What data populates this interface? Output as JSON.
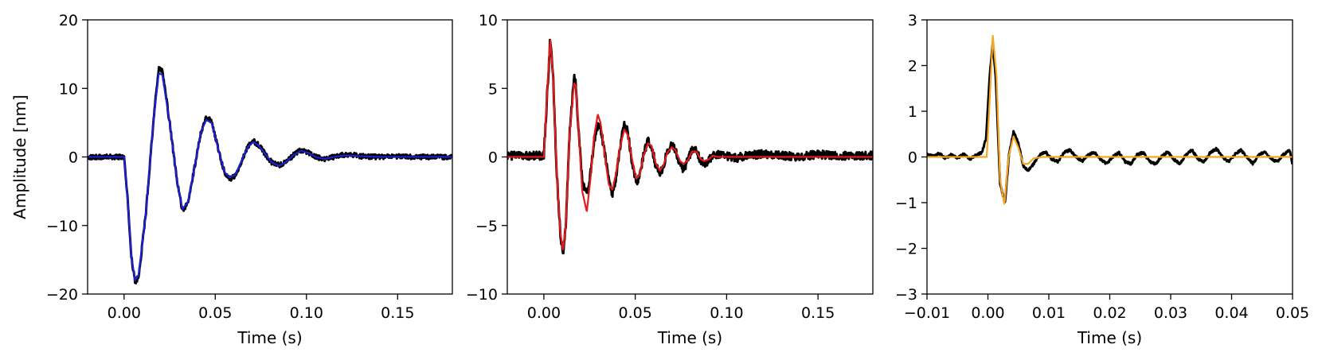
{
  "chart_data": [
    {
      "type": "line",
      "xlabel": "Time (s)",
      "ylabel": "Amplitude [nm]",
      "xlim": [
        -0.02,
        0.18
      ],
      "ylim": [
        -20,
        20
      ],
      "xticks": [
        0.0,
        0.05,
        0.1,
        0.15
      ],
      "xtick_labels": [
        "0.00",
        "0.05",
        "0.10",
        "0.15"
      ],
      "yticks": [
        -20,
        -10,
        0,
        10,
        20
      ],
      "ytick_labels": [
        "−20",
        "−10",
        "0",
        "10",
        "20"
      ],
      "grid": false,
      "series": [
        {
          "color": "#000000",
          "noise": 0.35,
          "x": [
            -0.02,
            0.0,
            0.002,
            0.004,
            0.006,
            0.008,
            0.012,
            0.016,
            0.019,
            0.021,
            0.025,
            0.029,
            0.032,
            0.035,
            0.039,
            0.042,
            0.045,
            0.048,
            0.052,
            0.055,
            0.058,
            0.061,
            0.065,
            0.068,
            0.071,
            0.074,
            0.078,
            0.081,
            0.085,
            0.089,
            0.093,
            0.097,
            0.101,
            0.105,
            0.11,
            0.115,
            0.12,
            0.125,
            0.13,
            0.14,
            0.15,
            0.16,
            0.17,
            0.18
          ],
          "y": [
            0,
            0,
            -6.5,
            -14.5,
            -18.3,
            -17.5,
            -8.0,
            5.0,
            13.0,
            12.6,
            5.0,
            -3.5,
            -7.8,
            -6.8,
            -1.0,
            3.5,
            5.8,
            5.2,
            0.8,
            -2.2,
            -3.2,
            -2.8,
            -0.2,
            1.6,
            2.3,
            1.7,
            0.2,
            -0.8,
            -1.2,
            -0.7,
            0.3,
            1.0,
            0.7,
            0.0,
            -0.3,
            0.0,
            0.3,
            0.3,
            0.1,
            0.0,
            0.1,
            0.0,
            0.0,
            0.0
          ]
        },
        {
          "color": "#1f1fd6",
          "noise": 0,
          "x": [
            -0.02,
            0.0,
            0.002,
            0.004,
            0.006,
            0.008,
            0.012,
            0.016,
            0.019,
            0.021,
            0.025,
            0.029,
            0.032,
            0.035,
            0.039,
            0.042,
            0.045,
            0.048,
            0.052,
            0.055,
            0.058,
            0.061,
            0.065,
            0.068,
            0.071,
            0.074,
            0.078,
            0.081,
            0.085,
            0.089,
            0.093,
            0.097,
            0.101,
            0.105,
            0.11,
            0.115,
            0.12,
            0.125,
            0.13,
            0.14,
            0.15,
            0.16,
            0.17,
            0.18
          ],
          "y": [
            0,
            0,
            -6.5,
            -14.5,
            -18.0,
            -17.2,
            -8.0,
            5.0,
            12.2,
            12.0,
            5.0,
            -3.5,
            -7.6,
            -6.6,
            -1.0,
            3.5,
            5.4,
            5.0,
            0.8,
            -2.2,
            -3.0,
            -2.6,
            -0.2,
            1.5,
            2.2,
            1.6,
            0.2,
            -0.8,
            -1.3,
            -0.7,
            0.3,
            0.9,
            0.6,
            0.0,
            -0.3,
            0.0,
            0.2,
            0.2,
            0.1,
            0.0,
            0.0,
            0.0,
            0.0,
            0.0
          ]
        }
      ]
    },
    {
      "type": "line",
      "xlabel": "Time (s)",
      "ylabel": "",
      "xlim": [
        -0.02,
        0.18
      ],
      "ylim": [
        -10,
        10
      ],
      "xticks": [
        0.0,
        0.05,
        0.1,
        0.15
      ],
      "xtick_labels": [
        "0.00",
        "0.05",
        "0.10",
        "0.15"
      ],
      "yticks": [
        -10,
        -5,
        0,
        5,
        10
      ],
      "ytick_labels": [
        "−10",
        "−5",
        "0",
        "5",
        "10"
      ],
      "grid": false,
      "series": [
        {
          "color": "#000000",
          "noise": 0.3,
          "x": [
            -0.02,
            0.0,
            0.002,
            0.0035,
            0.005,
            0.007,
            0.009,
            0.0105,
            0.012,
            0.014,
            0.0165,
            0.0175,
            0.019,
            0.021,
            0.0235,
            0.0255,
            0.0275,
            0.0295,
            0.031,
            0.033,
            0.0355,
            0.0375,
            0.0395,
            0.0415,
            0.044,
            0.046,
            0.048,
            0.0505,
            0.0525,
            0.0545,
            0.057,
            0.059,
            0.061,
            0.0635,
            0.0655,
            0.0675,
            0.07,
            0.072,
            0.0745,
            0.0765,
            0.079,
            0.081,
            0.0835,
            0.0855,
            0.0875,
            0.09,
            0.0925,
            0.095,
            0.1,
            0.105,
            0.11,
            0.12,
            0.13,
            0.14,
            0.15,
            0.16,
            0.17,
            0.18
          ],
          "y": [
            0.1,
            0.1,
            5.0,
            8.7,
            6.0,
            -1.0,
            -5.5,
            -7.1,
            -5.0,
            1.5,
            5.8,
            5.3,
            2.0,
            -1.8,
            -2.8,
            -1.2,
            1.2,
            2.3,
            2.1,
            0.6,
            -1.5,
            -2.7,
            -1.5,
            0.6,
            2.5,
            1.8,
            -0.2,
            -1.8,
            -1.5,
            0.2,
            1.2,
            0.8,
            -0.5,
            -1.2,
            -0.7,
            0.4,
            0.9,
            0.6,
            -0.6,
            -0.9,
            -0.2,
            0.6,
            0.5,
            -0.2,
            -0.5,
            -0.3,
            0.1,
            0.2,
            0.1,
            -0.1,
            0.1,
            0.2,
            0.1,
            0.0,
            0.2,
            0.1,
            0.1,
            0.1
          ]
        },
        {
          "color": "#e41a1c",
          "noise": 0,
          "x": [
            -0.02,
            0.0,
            0.002,
            0.0035,
            0.005,
            0.007,
            0.009,
            0.0105,
            0.012,
            0.014,
            0.0165,
            0.0175,
            0.019,
            0.021,
            0.0235,
            0.0255,
            0.0275,
            0.0295,
            0.031,
            0.033,
            0.0355,
            0.0375,
            0.0395,
            0.0415,
            0.044,
            0.046,
            0.048,
            0.0505,
            0.0525,
            0.0545,
            0.057,
            0.059,
            0.061,
            0.0635,
            0.0655,
            0.0675,
            0.07,
            0.072,
            0.0745,
            0.0765,
            0.079,
            0.081,
            0.0835,
            0.0855,
            0.0875,
            0.09,
            0.0925,
            0.095,
            0.1,
            0.105,
            0.11,
            0.12,
            0.13,
            0.14,
            0.15,
            0.16,
            0.17,
            0.18
          ],
          "y": [
            0,
            0,
            5.2,
            8.6,
            6.0,
            -1.0,
            -5.5,
            -6.8,
            -5.0,
            1.5,
            5.4,
            5.2,
            2.0,
            -2.5,
            -4.0,
            -1.6,
            1.5,
            3.1,
            2.5,
            0.5,
            -2.0,
            -2.4,
            -1.2,
            0.6,
            2.0,
            1.6,
            0.0,
            -1.6,
            -1.3,
            0.1,
            1.0,
            0.8,
            -0.4,
            -1.0,
            -0.6,
            0.3,
            0.7,
            0.5,
            -0.3,
            -0.5,
            -0.2,
            0.4,
            0.4,
            -0.1,
            -0.3,
            -0.2,
            0.1,
            0.0,
            0.0,
            0.0,
            0.0,
            0.0,
            0.0,
            0.0,
            0.0,
            0.0,
            0.0,
            0.0
          ]
        }
      ]
    },
    {
      "type": "line",
      "xlabel": "Time (s)",
      "ylabel": "",
      "xlim": [
        -0.01,
        0.05
      ],
      "ylim": [
        -3,
        3
      ],
      "xticks": [
        -0.01,
        0.0,
        0.01,
        0.02,
        0.03,
        0.04,
        0.05
      ],
      "xtick_labels": [
        "−0.01",
        "0.00",
        "0.01",
        "0.02",
        "0.03",
        "0.04",
        "0.05"
      ],
      "yticks": [
        -3,
        -2,
        -1,
        0,
        1,
        2,
        3
      ],
      "ytick_labels": [
        "−3",
        "−2",
        "−1",
        "0",
        "1",
        "2",
        "3"
      ],
      "grid": false,
      "series": [
        {
          "color": "#000000",
          "noise": 0.025,
          "x": [
            -0.01,
            -0.009,
            -0.008,
            -0.007,
            -0.006,
            -0.005,
            -0.004,
            -0.003,
            -0.002,
            -0.001,
            -0.0003,
            0.0003,
            0.0008,
            0.0013,
            0.002,
            0.0028,
            0.0035,
            0.0042,
            0.005,
            0.0058,
            0.0066,
            0.0075,
            0.0085,
            0.0095,
            0.0105,
            0.0115,
            0.0125,
            0.0135,
            0.0145,
            0.0155,
            0.0165,
            0.0175,
            0.0185,
            0.0195,
            0.0205,
            0.0215,
            0.0225,
            0.0235,
            0.0245,
            0.0255,
            0.0265,
            0.0275,
            0.0285,
            0.0295,
            0.0305,
            0.0315,
            0.0325,
            0.0335,
            0.0345,
            0.0355,
            0.0365,
            0.0375,
            0.0385,
            0.0395,
            0.0405,
            0.0415,
            0.0425,
            0.0435,
            0.0445,
            0.0455,
            0.0465,
            0.0475,
            0.0485,
            0.0495,
            0.05
          ],
          "y": [
            0.05,
            0.02,
            0.08,
            -0.03,
            0.05,
            -0.03,
            0.06,
            -0.05,
            0.03,
            0.1,
            0.4,
            1.8,
            2.5,
            1.7,
            -0.6,
            -1.0,
            0.1,
            0.55,
            0.3,
            -0.2,
            -0.3,
            -0.15,
            0.05,
            0.1,
            -0.05,
            -0.1,
            0.1,
            0.15,
            0.0,
            -0.1,
            0.05,
            0.1,
            -0.05,
            -0.15,
            0.0,
            0.1,
            -0.1,
            -0.15,
            0.05,
            0.1,
            -0.1,
            -0.15,
            0.0,
            0.12,
            -0.05,
            -0.15,
            0.05,
            0.15,
            -0.05,
            -0.1,
            0.1,
            0.18,
            0.0,
            -0.1,
            0.05,
            0.15,
            0.0,
            -0.15,
            0.05,
            0.12,
            -0.05,
            -0.1,
            0.05,
            0.15,
            -0.15
          ]
        },
        {
          "color": "#f5a623",
          "noise": 0,
          "x": [
            -0.01,
            -0.0002,
            0.0002,
            0.0008,
            0.0014,
            0.002,
            0.0027,
            0.0034,
            0.0042,
            0.005,
            0.0058,
            0.0066,
            0.0075,
            0.009,
            0.012,
            0.02,
            0.03,
            0.04,
            0.05
          ],
          "y": [
            0,
            0,
            1.0,
            2.65,
            1.8,
            -0.5,
            -1.05,
            0.0,
            0.45,
            0.2,
            -0.15,
            -0.15,
            -0.03,
            0.0,
            0.0,
            0.0,
            0.0,
            0.0,
            0.0
          ]
        }
      ]
    }
  ]
}
